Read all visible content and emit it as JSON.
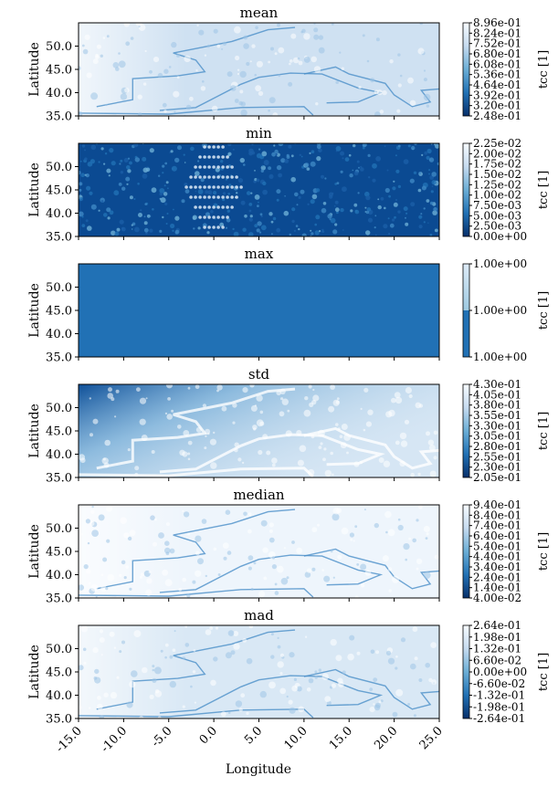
{
  "figure": {
    "xlabel": "Longitude",
    "colorbar_label": "tcc [1]"
  },
  "chart_data": [
    {
      "type": "heatmap",
      "title": "mean",
      "ylabel": "Latitude",
      "xlabel": "Longitude",
      "xlim": [
        -15.0,
        25.0
      ],
      "ylim": [
        35.0,
        55.0
      ],
      "yticks": [
        "35.0",
        "40.0",
        "45.0",
        "50.0"
      ],
      "xticks": [
        "-15.0",
        "-10.0",
        "-5.0",
        "0.0",
        "5.0",
        "10.0",
        "15.0",
        "20.0",
        "25.0"
      ],
      "colormap": "Blues_r",
      "colorbar_label": "tcc [1]",
      "colorbar_ticks": [
        "2.48e-01",
        "3.20e-01",
        "3.92e-01",
        "4.64e-01",
        "5.36e-01",
        "6.08e-01",
        "6.80e-01",
        "7.52e-01",
        "8.24e-01",
        "8.96e-01"
      ],
      "fill": "#cfe1f2",
      "pattern": "coast"
    },
    {
      "type": "heatmap",
      "title": "min",
      "ylabel": "Latitude",
      "xlim": [
        -15.0,
        25.0
      ],
      "ylim": [
        35.0,
        55.0
      ],
      "yticks": [
        "35.0",
        "40.0",
        "45.0",
        "50.0"
      ],
      "colormap": "Blues_r",
      "colorbar_label": "tcc [1]",
      "colorbar_ticks": [
        "0.00e+00",
        "2.50e-03",
        "5.00e-03",
        "7.50e-03",
        "1.00e-02",
        "1.25e-02",
        "1.50e-02",
        "1.75e-02",
        "2.00e-02",
        "2.25e-02"
      ],
      "fill": "#0b4a92",
      "pattern": "dots"
    },
    {
      "type": "heatmap",
      "title": "max",
      "ylabel": "Latitude",
      "xlim": [
        -15.0,
        25.0
      ],
      "ylim": [
        35.0,
        55.0
      ],
      "yticks": [
        "35.0",
        "40.0",
        "45.0",
        "50.0"
      ],
      "colormap": "Blues_r",
      "colorbar_label": "tcc [1]",
      "colorbar_ticks": [
        "1.00e+00",
        "1.00e+00",
        "1.00e+00"
      ],
      "fill": "#2171b5",
      "pattern": "none"
    },
    {
      "type": "heatmap",
      "title": "std",
      "ylabel": "Latitude",
      "xlim": [
        -15.0,
        25.0
      ],
      "ylim": [
        35.0,
        55.0
      ],
      "yticks": [
        "35.0",
        "40.0",
        "45.0",
        "50.0"
      ],
      "colormap": "Blues_r",
      "colorbar_label": "tcc [1]",
      "colorbar_ticks": [
        "2.05e-01",
        "2.30e-01",
        "2.55e-01",
        "2.80e-01",
        "3.05e-01",
        "3.30e-01",
        "3.55e-01",
        "3.80e-01",
        "4.05e-01",
        "4.30e-01"
      ],
      "fill": "#d6e6f4",
      "pattern": "std"
    },
    {
      "type": "heatmap",
      "title": "median",
      "ylabel": "Latitude",
      "xlim": [
        -15.0,
        25.0
      ],
      "ylim": [
        35.0,
        55.0
      ],
      "yticks": [
        "35.0",
        "40.0",
        "45.0",
        "50.0"
      ],
      "colormap": "Blues_r",
      "colorbar_label": "tcc [1]",
      "colorbar_ticks": [
        "4.00e-02",
        "1.40e-01",
        "2.40e-01",
        "3.40e-01",
        "4.40e-01",
        "5.40e-01",
        "6.40e-01",
        "7.40e-01",
        "8.40e-01",
        "9.40e-01"
      ],
      "fill": "#eef5fc",
      "pattern": "coast"
    },
    {
      "type": "heatmap",
      "title": "mad",
      "ylabel": "Latitude",
      "xlim": [
        -15.0,
        25.0
      ],
      "ylim": [
        35.0,
        55.0
      ],
      "yticks": [
        "35.0",
        "40.0",
        "45.0",
        "50.0"
      ],
      "colormap": "Blues_r",
      "colorbar_label": "tcc [1]",
      "colorbar_ticks": [
        "-2.64e-01",
        "-1.98e-01",
        "-1.32e-01",
        "-6.60e-02",
        "0.00e+00",
        "6.60e-02",
        "1.32e-01",
        "1.98e-01",
        "2.64e-01"
      ],
      "fill": "#d9e8f5",
      "pattern": "coast"
    }
  ]
}
